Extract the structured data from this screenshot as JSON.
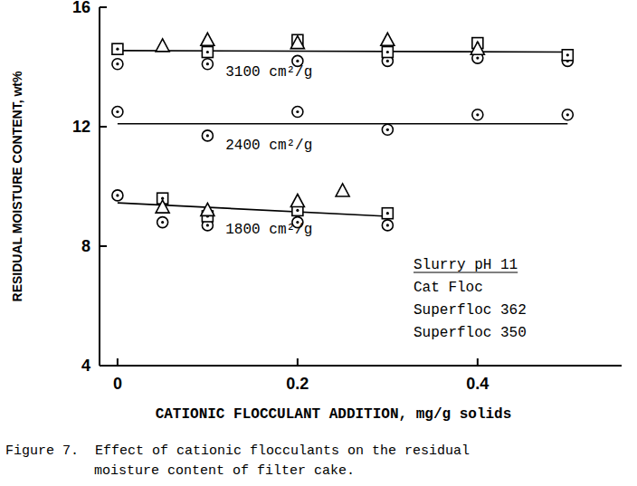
{
  "chart_data": {
    "type": "scatter",
    "xlabel": "CATIONIC FLOCCULANT ADDITION, mg/g solids",
    "ylabel": "RESIDUAL MOISTURE CONTENT, wt%",
    "caption": [
      "Figure 7.  Effect of cationic flocculants on the residual",
      "moisture content of filter cake."
    ],
    "xlim": [
      -0.02,
      0.56
    ],
    "ylim": [
      4,
      16
    ],
    "xticks": [
      0,
      0.2,
      0.4
    ],
    "yticks": [
      4,
      8,
      12,
      16
    ],
    "legend": "lower-right",
    "legend_title": "Slurry pH 11",
    "color": "#000000",
    "series": [
      {
        "name": "Cat Floc",
        "marker": "circle-dot",
        "color": "#000000",
        "x": [
          0,
          0.1,
          0.2,
          0.3,
          0.4,
          0.5,
          0,
          0.1,
          0.2,
          0.3,
          0.4,
          0.5,
          0,
          0.05,
          0.1,
          0.2,
          0.3
        ],
        "values": [
          14.1,
          14.1,
          14.2,
          14.2,
          14.3,
          14.2,
          12.5,
          11.7,
          12.5,
          11.9,
          12.4,
          12.4,
          9.7,
          8.8,
          8.7,
          8.8,
          8.7
        ]
      },
      {
        "name": "Superfloc 362",
        "marker": "square-dot",
        "color": "#000000",
        "x": [
          0,
          0.1,
          0.2,
          0.3,
          0.4,
          0.5,
          0.05,
          0.1,
          0.2,
          0.3
        ],
        "values": [
          14.6,
          14.5,
          14.9,
          14.5,
          14.8,
          14.4,
          9.6,
          9.0,
          9.2,
          9.1
        ]
      },
      {
        "name": "Superfloc 350",
        "marker": "triangle",
        "color": "#000000",
        "x": [
          0.05,
          0.1,
          0.2,
          0.3,
          0.4,
          0.05,
          0.1,
          0.2,
          0.25
        ],
        "values": [
          14.7,
          14.9,
          14.8,
          14.9,
          14.6,
          9.3,
          9.2,
          9.5,
          9.85
        ]
      }
    ],
    "fit_lines": [
      {
        "label": "3100 cm²/g",
        "line_style": "solid",
        "x": [
          0,
          0.5
        ],
        "values": [
          14.55,
          14.5
        ]
      },
      {
        "label": "2400 cm²/g",
        "line_style": "solid",
        "x": [
          0,
          0.5
        ],
        "values": [
          12.1,
          12.1
        ]
      },
      {
        "label": "1800 cm²/g",
        "line_style": "solid",
        "x": [
          0,
          0.3
        ],
        "values": [
          9.45,
          9.0
        ]
      }
    ]
  }
}
